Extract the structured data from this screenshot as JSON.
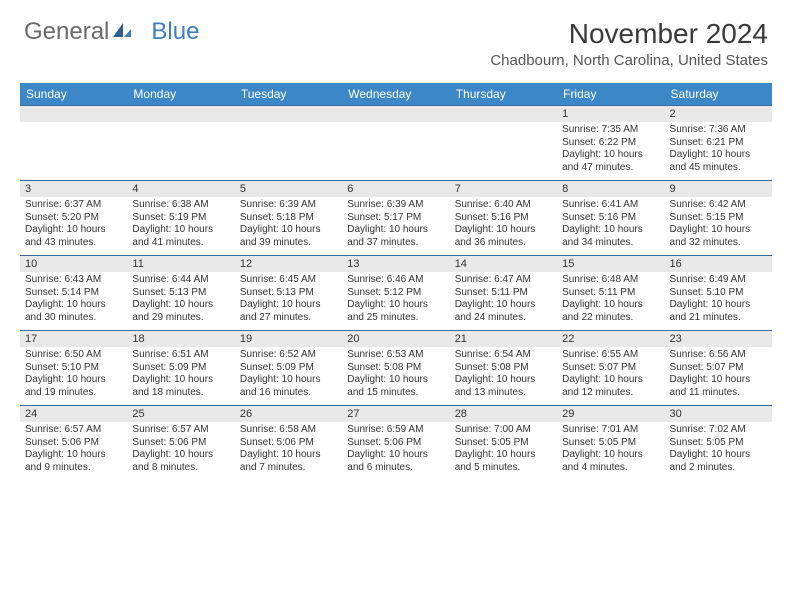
{
  "logo": {
    "text1": "General",
    "text2": "Blue"
  },
  "title": "November 2024",
  "location": "Chadbourn, North Carolina, United States",
  "colors": {
    "header_bg": "#3b87c8",
    "header_text": "#ffffff",
    "daynum_bg": "#e8e8e8",
    "border": "#3a6a9a",
    "logo_gray": "#6b6b6b",
    "logo_blue": "#3b7fc4"
  },
  "day_headers": [
    "Sunday",
    "Monday",
    "Tuesday",
    "Wednesday",
    "Thursday",
    "Friday",
    "Saturday"
  ],
  "weeks": [
    [
      {
        "n": "",
        "sunrise": "",
        "sunset": "",
        "daylight": ""
      },
      {
        "n": "",
        "sunrise": "",
        "sunset": "",
        "daylight": ""
      },
      {
        "n": "",
        "sunrise": "",
        "sunset": "",
        "daylight": ""
      },
      {
        "n": "",
        "sunrise": "",
        "sunset": "",
        "daylight": ""
      },
      {
        "n": "",
        "sunrise": "",
        "sunset": "",
        "daylight": ""
      },
      {
        "n": "1",
        "sunrise": "Sunrise: 7:35 AM",
        "sunset": "Sunset: 6:22 PM",
        "daylight": "Daylight: 10 hours and 47 minutes."
      },
      {
        "n": "2",
        "sunrise": "Sunrise: 7:36 AM",
        "sunset": "Sunset: 6:21 PM",
        "daylight": "Daylight: 10 hours and 45 minutes."
      }
    ],
    [
      {
        "n": "3",
        "sunrise": "Sunrise: 6:37 AM",
        "sunset": "Sunset: 5:20 PM",
        "daylight": "Daylight: 10 hours and 43 minutes."
      },
      {
        "n": "4",
        "sunrise": "Sunrise: 6:38 AM",
        "sunset": "Sunset: 5:19 PM",
        "daylight": "Daylight: 10 hours and 41 minutes."
      },
      {
        "n": "5",
        "sunrise": "Sunrise: 6:39 AM",
        "sunset": "Sunset: 5:18 PM",
        "daylight": "Daylight: 10 hours and 39 minutes."
      },
      {
        "n": "6",
        "sunrise": "Sunrise: 6:39 AM",
        "sunset": "Sunset: 5:17 PM",
        "daylight": "Daylight: 10 hours and 37 minutes."
      },
      {
        "n": "7",
        "sunrise": "Sunrise: 6:40 AM",
        "sunset": "Sunset: 5:16 PM",
        "daylight": "Daylight: 10 hours and 36 minutes."
      },
      {
        "n": "8",
        "sunrise": "Sunrise: 6:41 AM",
        "sunset": "Sunset: 5:16 PM",
        "daylight": "Daylight: 10 hours and 34 minutes."
      },
      {
        "n": "9",
        "sunrise": "Sunrise: 6:42 AM",
        "sunset": "Sunset: 5:15 PM",
        "daylight": "Daylight: 10 hours and 32 minutes."
      }
    ],
    [
      {
        "n": "10",
        "sunrise": "Sunrise: 6:43 AM",
        "sunset": "Sunset: 5:14 PM",
        "daylight": "Daylight: 10 hours and 30 minutes."
      },
      {
        "n": "11",
        "sunrise": "Sunrise: 6:44 AM",
        "sunset": "Sunset: 5:13 PM",
        "daylight": "Daylight: 10 hours and 29 minutes."
      },
      {
        "n": "12",
        "sunrise": "Sunrise: 6:45 AM",
        "sunset": "Sunset: 5:13 PM",
        "daylight": "Daylight: 10 hours and 27 minutes."
      },
      {
        "n": "13",
        "sunrise": "Sunrise: 6:46 AM",
        "sunset": "Sunset: 5:12 PM",
        "daylight": "Daylight: 10 hours and 25 minutes."
      },
      {
        "n": "14",
        "sunrise": "Sunrise: 6:47 AM",
        "sunset": "Sunset: 5:11 PM",
        "daylight": "Daylight: 10 hours and 24 minutes."
      },
      {
        "n": "15",
        "sunrise": "Sunrise: 6:48 AM",
        "sunset": "Sunset: 5:11 PM",
        "daylight": "Daylight: 10 hours and 22 minutes."
      },
      {
        "n": "16",
        "sunrise": "Sunrise: 6:49 AM",
        "sunset": "Sunset: 5:10 PM",
        "daylight": "Daylight: 10 hours and 21 minutes."
      }
    ],
    [
      {
        "n": "17",
        "sunrise": "Sunrise: 6:50 AM",
        "sunset": "Sunset: 5:10 PM",
        "daylight": "Daylight: 10 hours and 19 minutes."
      },
      {
        "n": "18",
        "sunrise": "Sunrise: 6:51 AM",
        "sunset": "Sunset: 5:09 PM",
        "daylight": "Daylight: 10 hours and 18 minutes."
      },
      {
        "n": "19",
        "sunrise": "Sunrise: 6:52 AM",
        "sunset": "Sunset: 5:09 PM",
        "daylight": "Daylight: 10 hours and 16 minutes."
      },
      {
        "n": "20",
        "sunrise": "Sunrise: 6:53 AM",
        "sunset": "Sunset: 5:08 PM",
        "daylight": "Daylight: 10 hours and 15 minutes."
      },
      {
        "n": "21",
        "sunrise": "Sunrise: 6:54 AM",
        "sunset": "Sunset: 5:08 PM",
        "daylight": "Daylight: 10 hours and 13 minutes."
      },
      {
        "n": "22",
        "sunrise": "Sunrise: 6:55 AM",
        "sunset": "Sunset: 5:07 PM",
        "daylight": "Daylight: 10 hours and 12 minutes."
      },
      {
        "n": "23",
        "sunrise": "Sunrise: 6:56 AM",
        "sunset": "Sunset: 5:07 PM",
        "daylight": "Daylight: 10 hours and 11 minutes."
      }
    ],
    [
      {
        "n": "24",
        "sunrise": "Sunrise: 6:57 AM",
        "sunset": "Sunset: 5:06 PM",
        "daylight": "Daylight: 10 hours and 9 minutes."
      },
      {
        "n": "25",
        "sunrise": "Sunrise: 6:57 AM",
        "sunset": "Sunset: 5:06 PM",
        "daylight": "Daylight: 10 hours and 8 minutes."
      },
      {
        "n": "26",
        "sunrise": "Sunrise: 6:58 AM",
        "sunset": "Sunset: 5:06 PM",
        "daylight": "Daylight: 10 hours and 7 minutes."
      },
      {
        "n": "27",
        "sunrise": "Sunrise: 6:59 AM",
        "sunset": "Sunset: 5:06 PM",
        "daylight": "Daylight: 10 hours and 6 minutes."
      },
      {
        "n": "28",
        "sunrise": "Sunrise: 7:00 AM",
        "sunset": "Sunset: 5:05 PM",
        "daylight": "Daylight: 10 hours and 5 minutes."
      },
      {
        "n": "29",
        "sunrise": "Sunrise: 7:01 AM",
        "sunset": "Sunset: 5:05 PM",
        "daylight": "Daylight: 10 hours and 4 minutes."
      },
      {
        "n": "30",
        "sunrise": "Sunrise: 7:02 AM",
        "sunset": "Sunset: 5:05 PM",
        "daylight": "Daylight: 10 hours and 2 minutes."
      }
    ]
  ]
}
